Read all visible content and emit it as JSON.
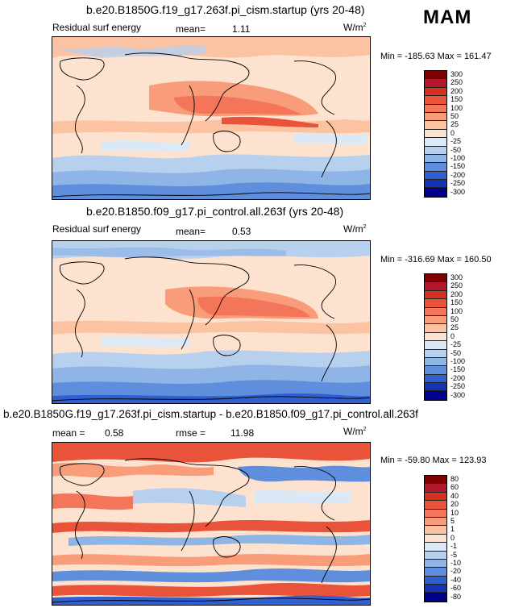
{
  "season": "MAM",
  "panels": [
    {
      "title": "b.e20.B1850G.f19_g17.263f.pi_cism.startup (yrs 20-48)",
      "field_label": "Residual surf energy",
      "mean_label": "mean=",
      "mean_value": "1.11",
      "units": "W/m",
      "units_sup": "2",
      "min_max": "Min = -185.63  Max = 161.47",
      "colorbar_ticks": [
        "300",
        "250",
        "200",
        "150",
        "100",
        "50",
        "25",
        "0",
        "-25",
        "-50",
        "-100",
        "-150",
        "-200",
        "-250",
        "-300"
      ]
    },
    {
      "title": "b.e20.B1850.f09_g17.pi_control.all.263f (yrs 20-48)",
      "field_label": "Residual surf energy",
      "mean_label": "mean=",
      "mean_value": "0.53",
      "units": "W/m",
      "units_sup": "2",
      "min_max": "Min = -316.69  Max = 160.50",
      "colorbar_ticks": [
        "300",
        "250",
        "200",
        "150",
        "100",
        "50",
        "25",
        "0",
        "-25",
        "-50",
        "-100",
        "-150",
        "-200",
        "-250",
        "-300"
      ]
    },
    {
      "title": "b.e20.B1850G.f19_g17.263f.pi_cism.startup - b.e20.B1850.f09_g17.pi_control.all.263f",
      "mean_label": "mean =",
      "mean_value": "0.58",
      "rmse_label": "rmse =",
      "rmse_value": "11.98",
      "units": "W/m",
      "units_sup": "2",
      "min_max": "Min = -59.80  Max = 123.93",
      "colorbar_ticks": [
        "80",
        "60",
        "40",
        "20",
        "10",
        "5",
        "1",
        "0",
        "-1",
        "-5",
        "-10",
        "-20",
        "-40",
        "-60",
        "-80"
      ]
    }
  ],
  "colors": {
    "scale": [
      "#7f0000",
      "#b2182b",
      "#d6301f",
      "#e8533a",
      "#f4765a",
      "#f99c7a",
      "#fcc3a3",
      "#fde3cf",
      "#dbe8f6",
      "#b7d0ee",
      "#8fb4e6",
      "#5f8fdc",
      "#2f5fd0",
      "#1434b5",
      "#00008a"
    ],
    "coast": "#000000"
  }
}
